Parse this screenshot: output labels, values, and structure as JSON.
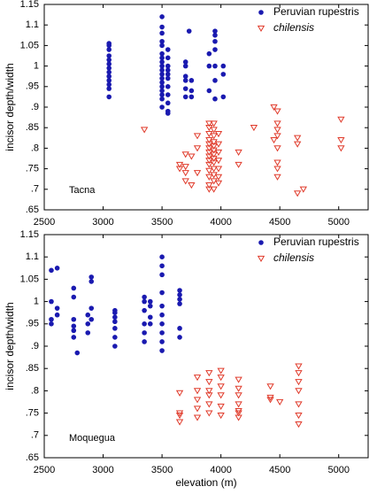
{
  "chart_data": [
    {
      "type": "scatter",
      "annotation": "Tacna",
      "ylabel": "incisor depth/width",
      "xlim": [
        2500,
        5250
      ],
      "xticks": [
        2500,
        3000,
        3500,
        4000,
        4500,
        5000
      ],
      "ylim": [
        0.65,
        1.15
      ],
      "yticks": [
        {
          "value": 0.65,
          "label": ".65"
        },
        {
          "value": 0.7,
          "label": ".7"
        },
        {
          "value": 0.75,
          "label": ".75"
        },
        {
          "value": 0.8,
          "label": ".8"
        },
        {
          "value": 0.85,
          "label": ".85"
        },
        {
          "value": 0.9,
          "label": ".9"
        },
        {
          "value": 0.95,
          "label": ".95"
        },
        1,
        1.05,
        1.1,
        1.15
      ],
      "legend": "upper right",
      "series": [
        {
          "name": "Peruvian rupestris",
          "color": "#1a1ab0",
          "marker": "circle",
          "x": [
            3050,
            3050,
            3050,
            3050,
            3050,
            3050,
            3050,
            3050,
            3050,
            3050,
            3050,
            3050,
            3050,
            3500,
            3500,
            3500,
            3500,
            3500,
            3500,
            3500,
            3500,
            3500,
            3500,
            3500,
            3500,
            3500,
            3500,
            3500,
            3500,
            3500,
            3500,
            3550,
            3550,
            3550,
            3550,
            3550,
            3550,
            3550,
            3550,
            3550,
            3550,
            3550,
            3700,
            3700,
            3700,
            3700,
            3700,
            3700,
            3730,
            3750,
            3750,
            3750,
            3900,
            3900,
            3900,
            3950,
            3950,
            3950,
            3950,
            3950,
            3950,
            3950,
            4020,
            4020,
            4020
          ],
          "values": [
            0.925,
            0.945,
            0.955,
            0.965,
            0.975,
            0.985,
            0.995,
            1.005,
            1.015,
            1.025,
            1.04,
            1.05,
            1.055,
            0.9,
            0.92,
            0.93,
            0.94,
            0.95,
            0.96,
            0.97,
            0.98,
            0.99,
            1.0,
            1.01,
            1.02,
            1.03,
            1.05,
            1.06,
            1.08,
            1.095,
            1.12,
            0.885,
            0.89,
            0.91,
            0.93,
            0.95,
            0.97,
            0.98,
            0.99,
            1.0,
            1.02,
            1.04,
            0.925,
            0.945,
            0.965,
            0.975,
            1.0,
            1.01,
            1.085,
            0.925,
            0.94,
            0.965,
            0.94,
            1.0,
            1.03,
            0.92,
            0.965,
            1.0,
            1.04,
            1.06,
            1.075,
            1.085,
            0.925,
            0.98,
            1.0
          ]
        },
        {
          "name": "chilensis",
          "color": "#e03a2a",
          "marker": "triangle-down",
          "x": [
            3350,
            3650,
            3650,
            3700,
            3700,
            3700,
            3700,
            3750,
            3750,
            3800,
            3800,
            3800,
            3900,
            3900,
            3900,
            3900,
            3900,
            3900,
            3900,
            3900,
            3900,
            3900,
            3900,
            3900,
            3900,
            3900,
            3940,
            3940,
            3940,
            3940,
            3940,
            3940,
            3940,
            3940,
            3940,
            3940,
            3940,
            3940,
            3940,
            3980,
            3980,
            3980,
            3980,
            3980,
            3980,
            3980,
            4150,
            4150,
            4280,
            4450,
            4450,
            4480,
            4480,
            4480,
            4480,
            4480,
            4480,
            4480,
            4480,
            4650,
            4650,
            4650,
            4700,
            5020,
            5020,
            5020
          ],
          "values": [
            0.845,
            0.75,
            0.76,
            0.72,
            0.74,
            0.755,
            0.785,
            0.71,
            0.78,
            0.74,
            0.8,
            0.83,
            0.7,
            0.71,
            0.73,
            0.745,
            0.76,
            0.77,
            0.78,
            0.79,
            0.8,
            0.81,
            0.82,
            0.835,
            0.85,
            0.86,
            0.7,
            0.72,
            0.735,
            0.75,
            0.765,
            0.775,
            0.785,
            0.795,
            0.805,
            0.815,
            0.83,
            0.845,
            0.86,
            0.715,
            0.73,
            0.75,
            0.77,
            0.79,
            0.81,
            0.835,
            0.76,
            0.79,
            0.85,
            0.82,
            0.9,
            0.73,
            0.75,
            0.765,
            0.8,
            0.83,
            0.845,
            0.86,
            0.89,
            0.69,
            0.81,
            0.825,
            0.7,
            0.8,
            0.82,
            0.87
          ]
        }
      ]
    },
    {
      "type": "scatter",
      "annotation": "Moquegua",
      "ylabel": "incisor depth/width",
      "xlabel": "elevation (m)",
      "xlim": [
        2500,
        5250
      ],
      "xticks": [
        2500,
        3000,
        3500,
        4000,
        4500,
        5000
      ],
      "ylim": [
        0.65,
        1.15
      ],
      "yticks": [
        {
          "value": 0.65,
          "label": ".65"
        },
        {
          "value": 0.7,
          "label": ".7"
        },
        {
          "value": 0.75,
          "label": ".75"
        },
        {
          "value": 0.8,
          "label": ".8"
        },
        {
          "value": 0.85,
          "label": ".85"
        },
        {
          "value": 0.9,
          "label": ".9"
        },
        {
          "value": 0.95,
          "label": ".95"
        },
        1,
        1.05,
        1.1,
        1.15
      ],
      "legend": "upper right",
      "series": [
        {
          "name": "Peruvian rupestris",
          "color": "#1a1ab0",
          "marker": "circle",
          "x": [
            2560,
            2560,
            2560,
            2560,
            2610,
            2610,
            2610,
            2750,
            2750,
            2750,
            2750,
            2750,
            2750,
            2780,
            2870,
            2870,
            2870,
            2900,
            2900,
            2900,
            2900,
            3100,
            3100,
            3100,
            3100,
            3100,
            3100,
            3100,
            3350,
            3350,
            3350,
            3350,
            3350,
            3350,
            3400,
            3400,
            3400,
            3400,
            3500,
            3500,
            3500,
            3500,
            3500,
            3500,
            3500,
            3500,
            3500,
            3500,
            3650,
            3650,
            3650,
            3650,
            3650,
            3650
          ],
          "values": [
            0.95,
            0.96,
            1.0,
            1.07,
            0.97,
            0.985,
            1.075,
            0.92,
            0.935,
            0.945,
            0.96,
            1.01,
            1.03,
            0.885,
            0.93,
            0.95,
            0.97,
            0.96,
            0.985,
            1.045,
            1.055,
            0.9,
            0.92,
            0.94,
            0.955,
            0.965,
            0.975,
            0.98,
            0.91,
            0.93,
            0.95,
            0.98,
            1.0,
            1.01,
            0.95,
            0.965,
            0.99,
            1.0,
            0.89,
            0.91,
            0.93,
            0.95,
            0.97,
            0.99,
            1.02,
            1.06,
            1.08,
            1.1,
            0.92,
            0.94,
            0.995,
            1.005,
            1.015,
            1.025
          ]
        },
        {
          "name": "chilensis",
          "color": "#e03a2a",
          "marker": "triangle-down",
          "x": [
            3650,
            3650,
            3650,
            3650,
            3800,
            3800,
            3800,
            3800,
            3800,
            3900,
            3900,
            3900,
            3900,
            3900,
            3900,
            4000,
            4000,
            4000,
            4000,
            4000,
            4000,
            4150,
            4150,
            4150,
            4150,
            4150,
            4150,
            4150,
            4420,
            4420,
            4420,
            4500,
            4660,
            4660,
            4660,
            4660,
            4660,
            4660,
            4660
          ],
          "values": [
            0.73,
            0.745,
            0.75,
            0.795,
            0.74,
            0.76,
            0.78,
            0.8,
            0.83,
            0.75,
            0.77,
            0.79,
            0.8,
            0.82,
            0.84,
            0.745,
            0.765,
            0.79,
            0.81,
            0.83,
            0.845,
            0.74,
            0.75,
            0.755,
            0.77,
            0.79,
            0.805,
            0.825,
            0.78,
            0.785,
            0.81,
            0.775,
            0.725,
            0.745,
            0.77,
            0.8,
            0.82,
            0.84,
            0.855
          ]
        }
      ]
    }
  ]
}
